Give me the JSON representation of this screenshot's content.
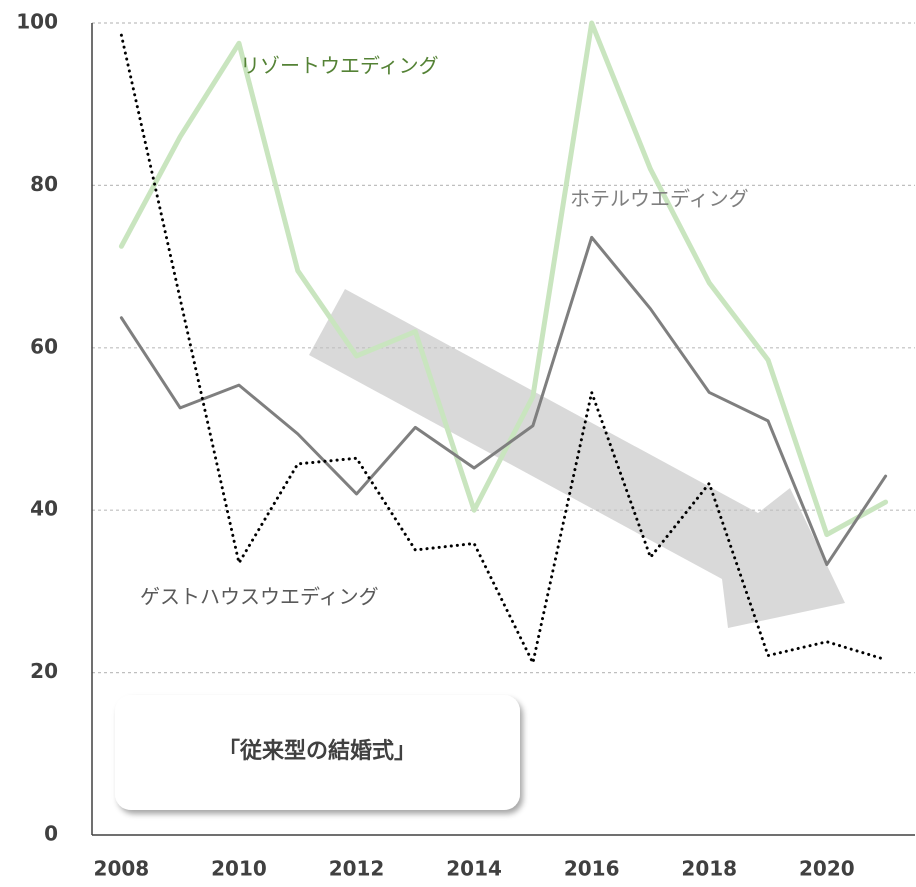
{
  "chart_data": {
    "type": "line",
    "x": [
      2008,
      2009,
      2010,
      2011,
      2012,
      2013,
      2014,
      2015,
      2016,
      2017,
      2018,
      2019,
      2020,
      2021
    ],
    "xlim": [
      2007.5,
      2021.5
    ],
    "xticks": [
      2008,
      2010,
      2012,
      2014,
      2016,
      2018,
      2020
    ],
    "ylim": [
      0,
      100
    ],
    "yticks": [
      0,
      20,
      40,
      60,
      80,
      100
    ],
    "grid": true,
    "series": [
      {
        "name": "リゾートウエディング",
        "color": "#c9e5bf",
        "values": [
          72.5,
          86,
          97.5,
          69.5,
          59,
          62,
          40,
          54,
          100,
          82,
          68,
          58.5,
          37,
          41
        ]
      },
      {
        "name": "ホテルウエディング",
        "color": "#7f7f7f",
        "values": [
          63.7,
          52.6,
          55.4,
          49.4,
          42,
          50.2,
          45.2,
          50.4,
          73.6,
          64.8,
          54.5,
          51,
          33.3,
          44.2
        ]
      },
      {
        "name": "ゲストハウスウエディング",
        "color": "#000000",
        "values": [
          98.5,
          66,
          33.5,
          45.7,
          46.4,
          35.1,
          35.9,
          21.2,
          54.5,
          34.2,
          43.3,
          22.1,
          23.8,
          21.6
        ]
      }
    ],
    "annotation": "「従来型の結婚式」"
  }
}
